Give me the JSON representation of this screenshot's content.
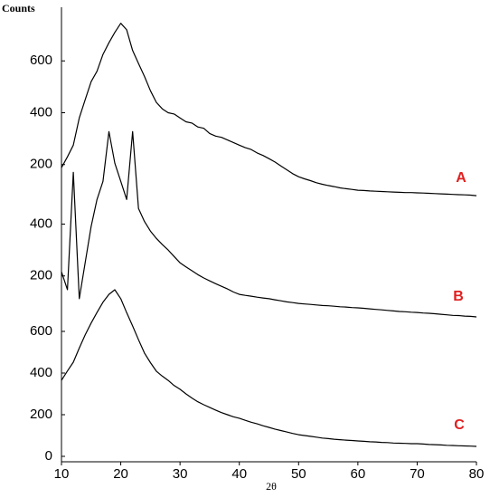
{
  "chart_data": [
    {
      "type": "line",
      "ylabel": "Counts",
      "label": "A",
      "color": "#000000",
      "xlim": [
        10,
        80
      ],
      "ylim": [
        0,
        800
      ],
      "yticks": [
        200,
        400,
        600
      ],
      "x": [
        10,
        11,
        12,
        13,
        14,
        15,
        16,
        17,
        18,
        19,
        20,
        21,
        22,
        23,
        24,
        25,
        26,
        27,
        28,
        29,
        30,
        31,
        32,
        33,
        34,
        35,
        36,
        37,
        38,
        39,
        40,
        41,
        42,
        43,
        44,
        45,
        46,
        47,
        48,
        49,
        50,
        51,
        52,
        53,
        54,
        55,
        56,
        57,
        58,
        59,
        60,
        61,
        62,
        63,
        64,
        65,
        66,
        67,
        68,
        69,
        70,
        71,
        72,
        73,
        74,
        75,
        76,
        77,
        78,
        79,
        80
      ],
      "values": [
        188,
        230,
        275,
        380,
        450,
        520,
        560,
        625,
        670,
        710,
        745,
        720,
        640,
        590,
        540,
        485,
        440,
        415,
        400,
        395,
        380,
        365,
        360,
        345,
        340,
        320,
        310,
        305,
        295,
        285,
        275,
        265,
        258,
        245,
        235,
        223,
        210,
        195,
        180,
        165,
        153,
        145,
        138,
        130,
        124,
        119,
        115,
        110,
        107,
        104,
        101,
        100,
        98,
        97,
        96,
        95,
        94,
        93,
        92,
        92,
        91,
        90,
        89,
        88,
        87,
        86,
        85,
        84,
        83,
        82,
        80
      ]
    },
    {
      "type": "line",
      "label": "B",
      "color": "#000000",
      "xlim": [
        10,
        80
      ],
      "ylim": [
        0,
        800
      ],
      "yticks": [
        200,
        400
      ],
      "x": [
        10,
        11,
        12,
        13,
        14,
        15,
        16,
        17,
        18,
        19,
        20,
        21,
        22,
        23,
        24,
        25,
        26,
        27,
        28,
        29,
        30,
        31,
        32,
        33,
        34,
        35,
        36,
        37,
        38,
        39,
        40,
        41,
        42,
        43,
        44,
        45,
        46,
        47,
        48,
        49,
        50,
        51,
        52,
        53,
        54,
        55,
        56,
        57,
        58,
        59,
        60,
        61,
        62,
        63,
        64,
        65,
        66,
        67,
        68,
        69,
        70,
        71,
        72,
        73,
        74,
        75,
        76,
        77,
        78,
        79,
        80
      ],
      "values": [
        216,
        147,
        600,
        112,
        251,
        391,
        495,
        565,
        757,
        635,
        565,
        495,
        757,
        460,
        410,
        373,
        345,
        321,
        300,
        275,
        251,
        235,
        220,
        205,
        192,
        181,
        170,
        160,
        150,
        138,
        129,
        125,
        122,
        118,
        115,
        112,
        108,
        104,
        100,
        97,
        94,
        92,
        90,
        88,
        86,
        85,
        83,
        81,
        80,
        78,
        77,
        75,
        73,
        71,
        69,
        67,
        65,
        63,
        62,
        60,
        59,
        57,
        56,
        54,
        52,
        50,
        48,
        47,
        45,
        44,
        42
      ]
    },
    {
      "type": "line",
      "label": "C",
      "color": "#000000",
      "xlabel": "2θ",
      "xlim": [
        10,
        80
      ],
      "xticks": [
        10,
        20,
        30,
        40,
        50,
        60,
        70,
        80
      ],
      "ylim": [
        0,
        800
      ],
      "yticks": [
        0,
        200,
        400,
        600
      ],
      "x": [
        10,
        11,
        12,
        13,
        14,
        15,
        16,
        17,
        18,
        19,
        20,
        21,
        22,
        23,
        24,
        25,
        26,
        27,
        28,
        29,
        30,
        31,
        32,
        33,
        34,
        35,
        36,
        37,
        38,
        39,
        40,
        41,
        42,
        43,
        44,
        45,
        46,
        47,
        48,
        49,
        50,
        51,
        52,
        53,
        54,
        55,
        56,
        57,
        58,
        59,
        60,
        61,
        62,
        63,
        64,
        65,
        66,
        67,
        68,
        69,
        70,
        71,
        72,
        73,
        74,
        75,
        76,
        77,
        78,
        79,
        80
      ],
      "values": [
        365,
        410,
        452,
        520,
        583,
        640,
        691,
        740,
        778,
        800,
        757,
        690,
        626,
        560,
        496,
        450,
        409,
        385,
        365,
        340,
        322,
        300,
        280,
        262,
        248,
        235,
        222,
        210,
        200,
        190,
        183,
        173,
        164,
        156,
        147,
        139,
        131,
        124,
        117,
        110,
        104,
        100,
        96,
        92,
        88,
        85,
        82,
        80,
        78,
        76,
        74,
        72,
        70,
        69,
        67,
        66,
        64,
        63,
        62,
        61,
        61,
        59,
        57,
        56,
        55,
        53,
        52,
        51,
        50,
        49,
        48
      ]
    }
  ]
}
